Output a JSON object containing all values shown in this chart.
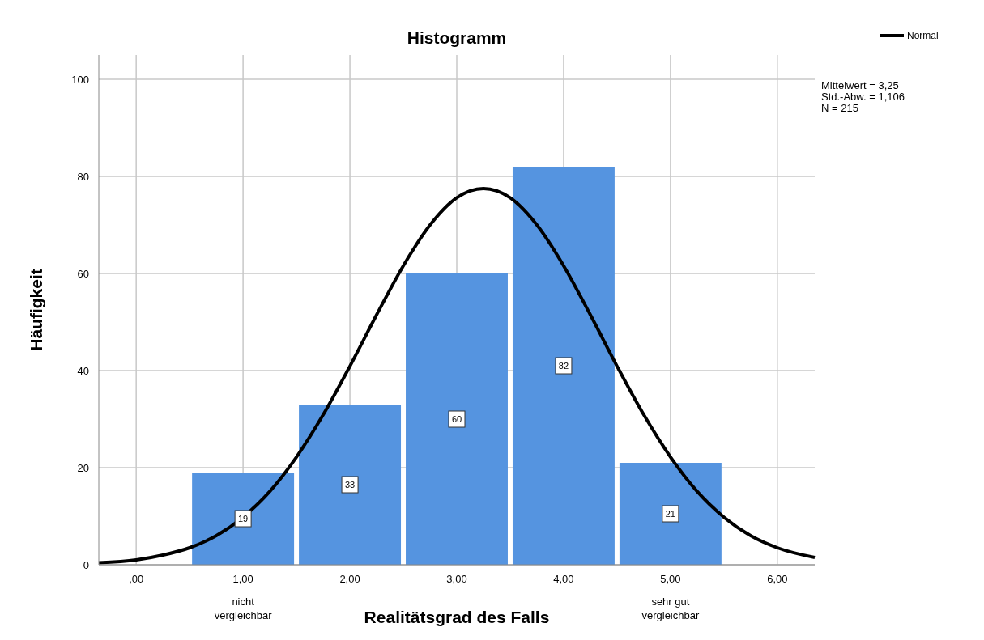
{
  "chart_data": {
    "type": "histogram",
    "title": "Histogramm",
    "xlabel": "Realitätsgrad des Falls",
    "ylabel": "Häufigkeit",
    "bins": [
      0.5,
      1.5,
      2.5,
      3.5,
      4.5,
      5.5
    ],
    "values": [
      19,
      33,
      60,
      82,
      21
    ],
    "color": "#5594e0",
    "value_labels": [
      "19",
      "33",
      "60",
      "82",
      "21"
    ],
    "series": [
      {
        "name": "Normal",
        "type": "line",
        "color": "#000000",
        "x": [
          -0.35,
          0,
          0.25,
          0.5,
          0.75,
          1,
          1.25,
          1.5,
          1.75,
          2,
          2.25,
          2.5,
          2.75,
          3,
          3.25,
          3.5,
          3.75,
          4,
          4.25,
          4.5,
          4.75,
          5,
          5.25,
          5.5,
          5.75,
          6,
          6.35
        ],
        "values": [
          0.4,
          1,
          2,
          3.5,
          6,
          9.8,
          15.1,
          22.2,
          30.9,
          40.9,
          51.5,
          61.6,
          70,
          75.6,
          77.5,
          75.6,
          70,
          61.6,
          51.5,
          40.9,
          30.9,
          22.2,
          15.1,
          9.8,
          6,
          3.5,
          1.5
        ]
      }
    ],
    "xlim": [
      -0.35,
      6.35
    ],
    "ylim": [
      0,
      105
    ],
    "xticks": [
      {
        "value": 0,
        "label": ",00"
      },
      {
        "value": 1,
        "label": "1,00"
      },
      {
        "value": 2,
        "label": "2,00"
      },
      {
        "value": 3,
        "label": "3,00"
      },
      {
        "value": 4,
        "label": "4,00"
      },
      {
        "value": 5,
        "label": "5,00"
      },
      {
        "value": 6,
        "label": "6,00"
      }
    ],
    "yticks": [
      0,
      20,
      40,
      60,
      80,
      100
    ],
    "grid": true,
    "legend": "top right",
    "line_style": "solid",
    "marker": "none",
    "annotations": [
      "Mittelwert = 3,25",
      "Std.-Abw. = 1,106",
      "N = 215",
      "nicht vergleichbar",
      "sehr gut vergleichbar"
    ]
  }
}
